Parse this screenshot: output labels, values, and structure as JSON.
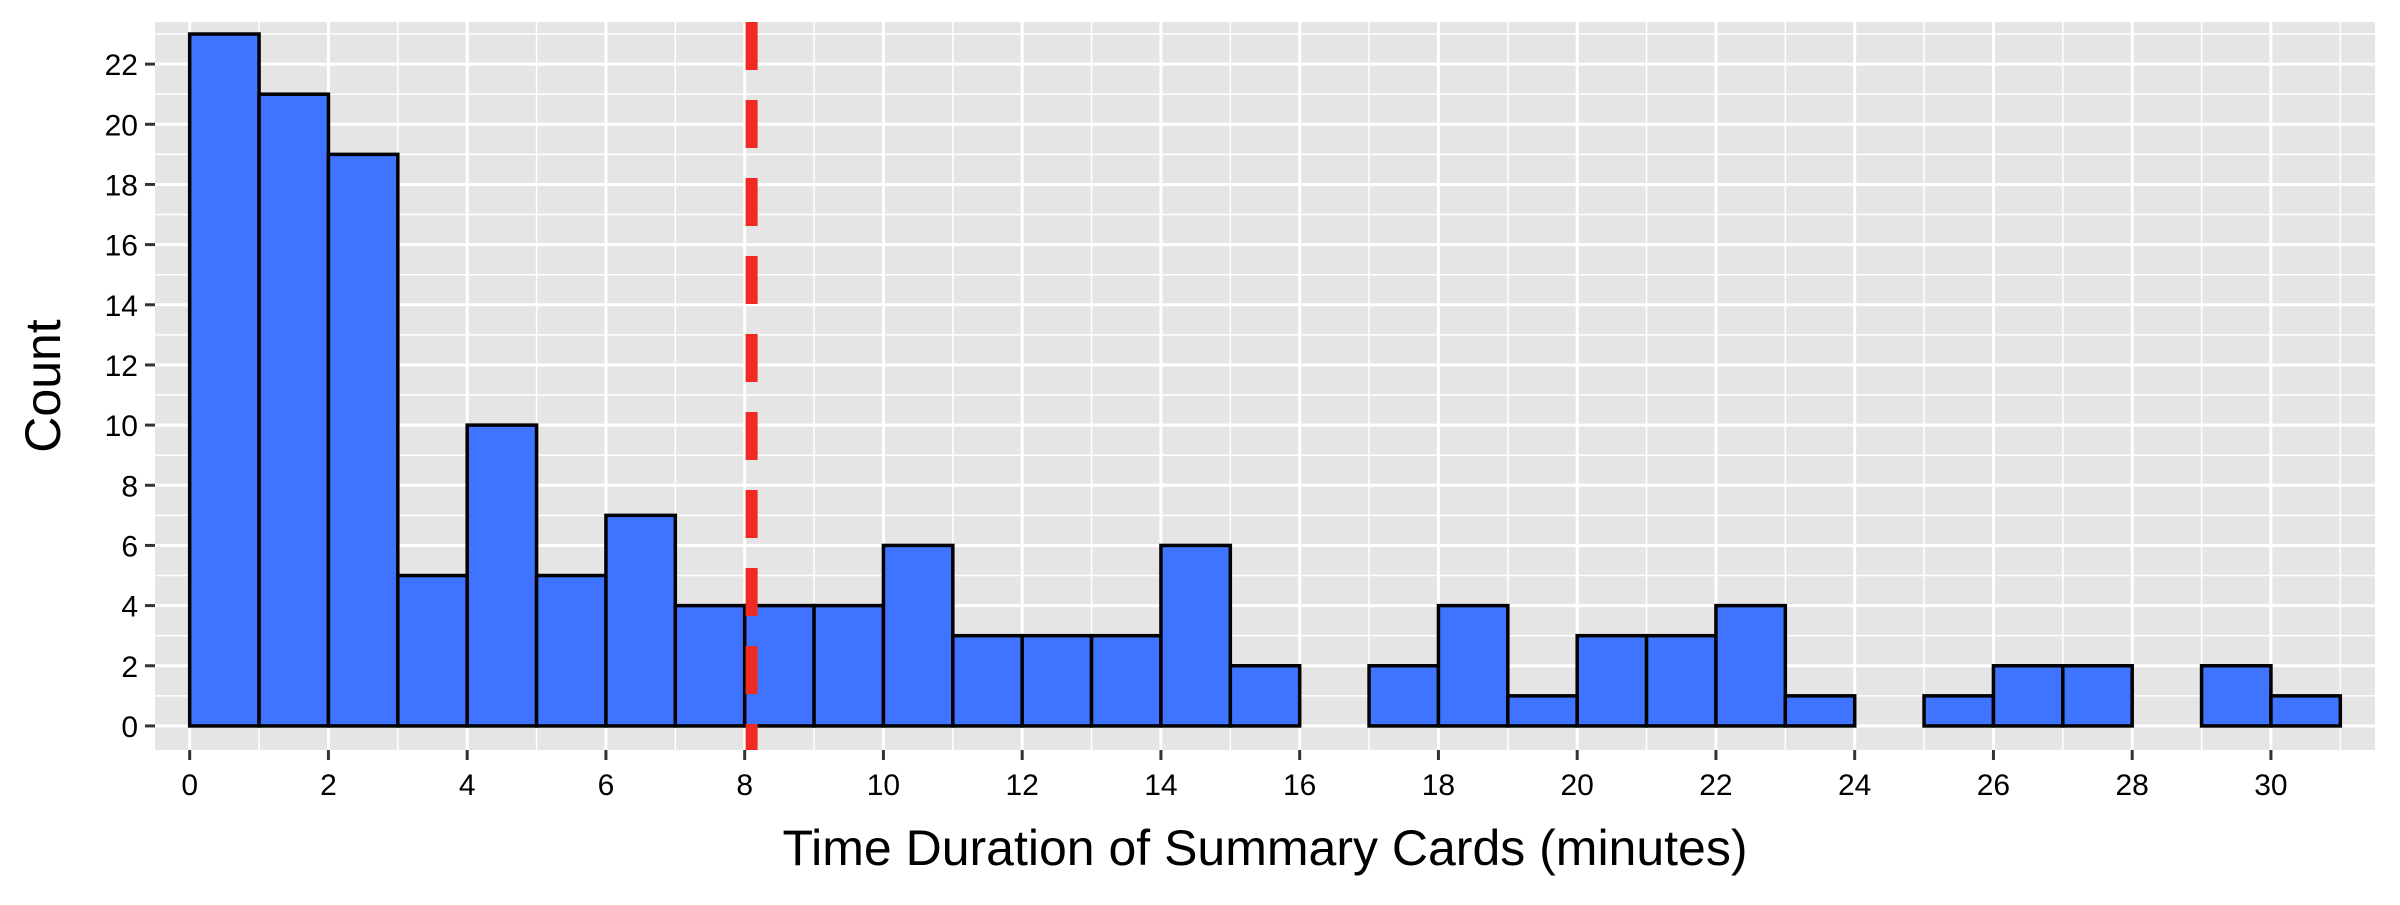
{
  "chart_data": {
    "type": "bar",
    "title": "",
    "xlabel": "Time Duration of Summary Cards (minutes)",
    "ylabel": "Count",
    "bin_width": 1,
    "bins_start": [
      0,
      1,
      2,
      3,
      4,
      5,
      6,
      7,
      8,
      9,
      10,
      11,
      12,
      13,
      14,
      15,
      16,
      17,
      18,
      19,
      20,
      21,
      22,
      23,
      24,
      25,
      26,
      27,
      28,
      29,
      30
    ],
    "values": [
      23,
      21,
      19,
      5,
      10,
      5,
      7,
      4,
      4,
      4,
      6,
      3,
      3,
      3,
      6,
      2,
      0,
      2,
      4,
      1,
      3,
      3,
      4,
      1,
      0,
      1,
      2,
      2,
      0,
      2,
      1
    ],
    "xlim": [
      -0.5,
      31.5
    ],
    "ylim": [
      -0.8,
      23.4
    ],
    "x_ticks": [
      0,
      2,
      4,
      6,
      8,
      10,
      12,
      14,
      16,
      18,
      20,
      22,
      24,
      26,
      28,
      30
    ],
    "y_ticks": [
      0,
      2,
      4,
      6,
      8,
      10,
      12,
      14,
      16,
      18,
      20,
      22
    ],
    "grid": true,
    "vline": {
      "x": 8.1,
      "style": "dashed"
    },
    "colors": {
      "bar_fill": "#3e74ff",
      "bar_stroke": "#000000",
      "panel_bg": "#e5e5e5",
      "grid": "#ffffff",
      "vline": "#ee2a22"
    }
  }
}
